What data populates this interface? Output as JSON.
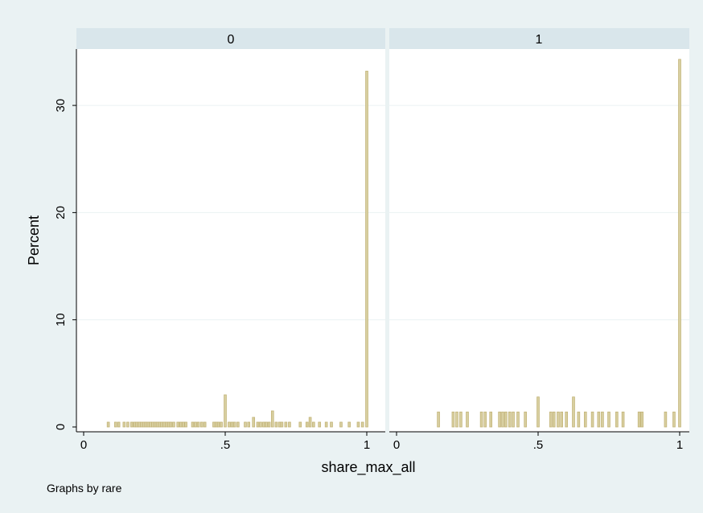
{
  "chart_data": {
    "type": "bar",
    "ylabel": "Percent",
    "xlabel": "share_max_all",
    "note": "Graphs by rare",
    "xlim": [
      0,
      1
    ],
    "ylim": [
      0,
      35
    ],
    "x_ticks": [
      0,
      0.5,
      1
    ],
    "x_tick_labels": [
      "0",
      ".5",
      "1"
    ],
    "y_ticks": [
      0,
      10,
      20,
      30
    ],
    "y_tick_labels": [
      "0",
      "10",
      "20",
      "30"
    ],
    "grid": true,
    "bar_width": 0.008,
    "colors": {
      "bar": "#d8cfa0",
      "bar_edge": "#c3b478",
      "strip": "#d9e6eb",
      "background": "#eaf2f3"
    },
    "panels": [
      {
        "label": "0",
        "bars": [
          {
            "x": 0.087,
            "y": 0.45
          },
          {
            "x": 0.113,
            "y": 0.45
          },
          {
            "x": 0.124,
            "y": 0.45
          },
          {
            "x": 0.143,
            "y": 0.45
          },
          {
            "x": 0.156,
            "y": 0.45
          },
          {
            "x": 0.17,
            "y": 0.45
          },
          {
            "x": 0.18,
            "y": 0.45
          },
          {
            "x": 0.188,
            "y": 0.45
          },
          {
            "x": 0.196,
            "y": 0.45
          },
          {
            "x": 0.204,
            "y": 0.45
          },
          {
            "x": 0.212,
            "y": 0.45
          },
          {
            "x": 0.22,
            "y": 0.45
          },
          {
            "x": 0.228,
            "y": 0.45
          },
          {
            "x": 0.236,
            "y": 0.45
          },
          {
            "x": 0.244,
            "y": 0.45
          },
          {
            "x": 0.252,
            "y": 0.45
          },
          {
            "x": 0.26,
            "y": 0.45
          },
          {
            "x": 0.268,
            "y": 0.45
          },
          {
            "x": 0.276,
            "y": 0.45
          },
          {
            "x": 0.284,
            "y": 0.45
          },
          {
            "x": 0.292,
            "y": 0.45
          },
          {
            "x": 0.3,
            "y": 0.45
          },
          {
            "x": 0.308,
            "y": 0.45
          },
          {
            "x": 0.318,
            "y": 0.45
          },
          {
            "x": 0.333,
            "y": 0.45
          },
          {
            "x": 0.343,
            "y": 0.45
          },
          {
            "x": 0.352,
            "y": 0.45
          },
          {
            "x": 0.361,
            "y": 0.45
          },
          {
            "x": 0.385,
            "y": 0.45
          },
          {
            "x": 0.395,
            "y": 0.45
          },
          {
            "x": 0.405,
            "y": 0.45
          },
          {
            "x": 0.417,
            "y": 0.45
          },
          {
            "x": 0.428,
            "y": 0.45
          },
          {
            "x": 0.46,
            "y": 0.45
          },
          {
            "x": 0.468,
            "y": 0.45
          },
          {
            "x": 0.476,
            "y": 0.45
          },
          {
            "x": 0.486,
            "y": 0.45
          },
          {
            "x": 0.5,
            "y": 3.0
          },
          {
            "x": 0.514,
            "y": 0.45
          },
          {
            "x": 0.524,
            "y": 0.45
          },
          {
            "x": 0.533,
            "y": 0.45
          },
          {
            "x": 0.545,
            "y": 0.45
          },
          {
            "x": 0.571,
            "y": 0.45
          },
          {
            "x": 0.583,
            "y": 0.45
          },
          {
            "x": 0.6,
            "y": 0.9
          },
          {
            "x": 0.615,
            "y": 0.45
          },
          {
            "x": 0.625,
            "y": 0.45
          },
          {
            "x": 0.636,
            "y": 0.45
          },
          {
            "x": 0.645,
            "y": 0.45
          },
          {
            "x": 0.655,
            "y": 0.45
          },
          {
            "x": 0.667,
            "y": 1.5
          },
          {
            "x": 0.68,
            "y": 0.45
          },
          {
            "x": 0.692,
            "y": 0.45
          },
          {
            "x": 0.7,
            "y": 0.45
          },
          {
            "x": 0.714,
            "y": 0.45
          },
          {
            "x": 0.727,
            "y": 0.45
          },
          {
            "x": 0.765,
            "y": 0.45
          },
          {
            "x": 0.789,
            "y": 0.45
          },
          {
            "x": 0.8,
            "y": 0.9
          },
          {
            "x": 0.812,
            "y": 0.45
          },
          {
            "x": 0.833,
            "y": 0.45
          },
          {
            "x": 0.857,
            "y": 0.45
          },
          {
            "x": 0.875,
            "y": 0.45
          },
          {
            "x": 0.909,
            "y": 0.45
          },
          {
            "x": 0.938,
            "y": 0.45
          },
          {
            "x": 0.97,
            "y": 0.45
          },
          {
            "x": 0.985,
            "y": 0.45
          },
          {
            "x": 1.0,
            "y": 33.2
          }
        ]
      },
      {
        "label": "1",
        "bars": [
          {
            "x": 0.148,
            "y": 1.4
          },
          {
            "x": 0.2,
            "y": 1.4
          },
          {
            "x": 0.213,
            "y": 1.4
          },
          {
            "x": 0.227,
            "y": 1.4
          },
          {
            "x": 0.25,
            "y": 1.4
          },
          {
            "x": 0.3,
            "y": 1.4
          },
          {
            "x": 0.313,
            "y": 1.4
          },
          {
            "x": 0.333,
            "y": 1.4
          },
          {
            "x": 0.364,
            "y": 1.4
          },
          {
            "x": 0.375,
            "y": 1.4
          },
          {
            "x": 0.386,
            "y": 1.4
          },
          {
            "x": 0.4,
            "y": 1.4
          },
          {
            "x": 0.412,
            "y": 1.4
          },
          {
            "x": 0.429,
            "y": 1.4
          },
          {
            "x": 0.455,
            "y": 1.4
          },
          {
            "x": 0.5,
            "y": 2.8
          },
          {
            "x": 0.545,
            "y": 1.4
          },
          {
            "x": 0.556,
            "y": 1.4
          },
          {
            "x": 0.571,
            "y": 1.4
          },
          {
            "x": 0.583,
            "y": 1.4
          },
          {
            "x": 0.6,
            "y": 1.4
          },
          {
            "x": 0.625,
            "y": 2.8
          },
          {
            "x": 0.643,
            "y": 1.4
          },
          {
            "x": 0.667,
            "y": 1.4
          },
          {
            "x": 0.692,
            "y": 1.4
          },
          {
            "x": 0.714,
            "y": 1.4
          },
          {
            "x": 0.727,
            "y": 1.4
          },
          {
            "x": 0.75,
            "y": 1.4
          },
          {
            "x": 0.778,
            "y": 1.4
          },
          {
            "x": 0.8,
            "y": 1.4
          },
          {
            "x": 0.857,
            "y": 1.4
          },
          {
            "x": 0.867,
            "y": 1.4
          },
          {
            "x": 0.95,
            "y": 1.4
          },
          {
            "x": 0.98,
            "y": 1.4
          },
          {
            "x": 1.0,
            "y": 34.3
          }
        ]
      }
    ]
  }
}
